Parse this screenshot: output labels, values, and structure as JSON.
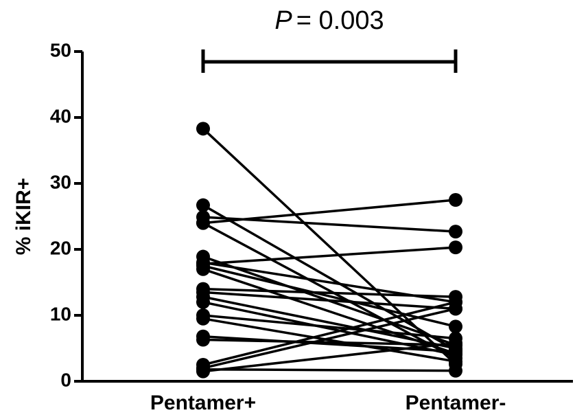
{
  "chart_data": {
    "type": "paired-dot",
    "y_label": "% iKIR+",
    "annotation": {
      "symbol": "P",
      "text": "= 0.003"
    },
    "categories": [
      "Pentamer+",
      "Pentamer-"
    ],
    "color": "#000000",
    "ylim": [
      0,
      50
    ],
    "yticks": [
      0,
      10,
      20,
      30,
      40,
      50
    ],
    "series": [
      {
        "values": [
          38.3,
          2.6
        ]
      },
      {
        "values": [
          26.7,
          4.7
        ]
      },
      {
        "values": [
          24.0,
          27.5
        ]
      },
      {
        "values": [
          24.9,
          22.7
        ]
      },
      {
        "values": [
          24.0,
          3.5
        ]
      },
      {
        "values": [
          17.8,
          20.3
        ]
      },
      {
        "values": [
          18.9,
          5.5
        ]
      },
      {
        "values": [
          18.0,
          12.0
        ]
      },
      {
        "values": [
          17.5,
          8.3
        ]
      },
      {
        "values": [
          17.0,
          4.2
        ]
      },
      {
        "values": [
          14.0,
          12.8
        ]
      },
      {
        "values": [
          13.5,
          11.0
        ]
      },
      {
        "values": [
          12.8,
          5.0
        ]
      },
      {
        "values": [
          12.0,
          4.0
        ]
      },
      {
        "values": [
          10.0,
          6.5
        ]
      },
      {
        "values": [
          9.5,
          3.0
        ]
      },
      {
        "values": [
          6.8,
          4.5
        ]
      },
      {
        "values": [
          6.3,
          5.5
        ]
      },
      {
        "values": [
          2.5,
          12.0
        ]
      },
      {
        "values": [
          2.0,
          11.0
        ]
      },
      {
        "values": [
          1.5,
          5.8
        ]
      },
      {
        "values": [
          1.8,
          1.6
        ]
      }
    ]
  }
}
